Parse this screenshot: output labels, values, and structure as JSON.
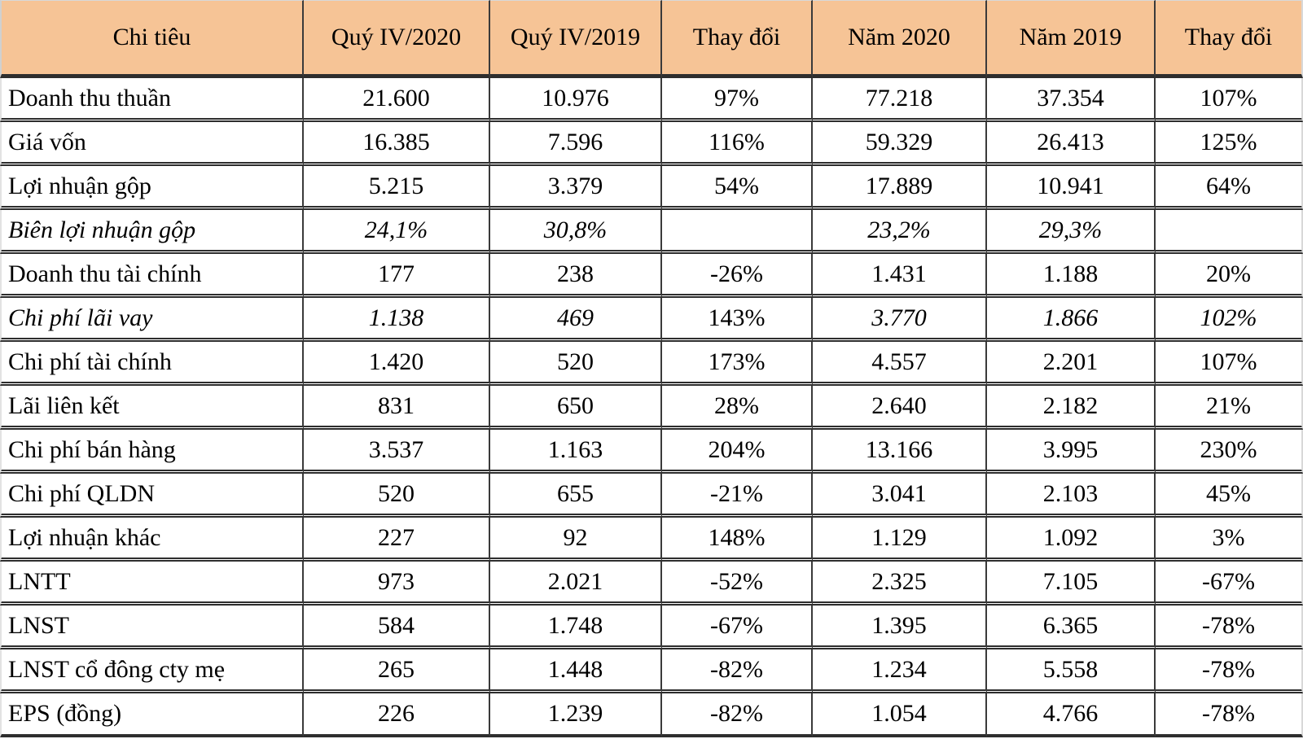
{
  "chart_data": {
    "type": "table",
    "columns": [
      "Chi tiêu",
      "Quý IV/2020",
      "Quý IV/2019",
      "Thay đổi",
      "Năm 2020",
      "Năm 2019",
      "Thay đổi"
    ],
    "rows": [
      {
        "label": "Doanh thu thuần",
        "italic": false,
        "values": [
          "21.600",
          "10.976",
          "97%",
          "77.218",
          "37.354",
          "107%"
        ]
      },
      {
        "label": "Giá vốn",
        "italic": false,
        "values": [
          "16.385",
          "7.596",
          "116%",
          "59.329",
          "26.413",
          "125%"
        ]
      },
      {
        "label": "Lợi nhuận gộp",
        "italic": false,
        "values": [
          "5.215",
          "3.379",
          "54%",
          "17.889",
          "10.941",
          "64%"
        ]
      },
      {
        "label": "Biên lợi nhuận gộp",
        "italic": true,
        "values": [
          "24,1%",
          "30,8%",
          "",
          "23,2%",
          "29,3%",
          ""
        ]
      },
      {
        "label": "Doanh thu tài chính",
        "italic": false,
        "values": [
          "177",
          "238",
          "-26%",
          "1.431",
          "1.188",
          "20%"
        ]
      },
      {
        "label": "Chi phí lãi vay",
        "italic": true,
        "upright_cells": [
          2
        ],
        "values": [
          "1.138",
          "469",
          "143%",
          "3.770",
          "1.866",
          "102%"
        ]
      },
      {
        "label": "Chi phí tài chính",
        "italic": false,
        "values": [
          "1.420",
          "520",
          "173%",
          "4.557",
          "2.201",
          "107%"
        ]
      },
      {
        "label": "Lãi liên kết",
        "italic": false,
        "values": [
          "831",
          "650",
          "28%",
          "2.640",
          "2.182",
          "21%"
        ]
      },
      {
        "label": "Chi phí bán hàng",
        "italic": false,
        "values": [
          "3.537",
          "1.163",
          "204%",
          "13.166",
          "3.995",
          "230%"
        ]
      },
      {
        "label": "Chi phí QLDN",
        "italic": false,
        "values": [
          "520",
          "655",
          "-21%",
          "3.041",
          "2.103",
          "45%"
        ]
      },
      {
        "label": "Lợi nhuận khác",
        "italic": false,
        "values": [
          "227",
          "92",
          "148%",
          "1.129",
          "1.092",
          "3%"
        ]
      },
      {
        "label": "LNTT",
        "italic": false,
        "values": [
          "973",
          "2.021",
          "-52%",
          "2.325",
          "7.105",
          "-67%"
        ]
      },
      {
        "label": "LNST",
        "italic": false,
        "values": [
          "584",
          "1.748",
          "-67%",
          "1.395",
          "6.365",
          "-78%"
        ]
      },
      {
        "label": "LNST cổ đông cty mẹ",
        "italic": false,
        "values": [
          "265",
          "1.448",
          "-82%",
          "1.234",
          "5.558",
          "-78%"
        ]
      },
      {
        "label": "EPS (đồng)",
        "italic": false,
        "values": [
          "226",
          "1.239",
          "-82%",
          "1.054",
          "4.766",
          "-78%"
        ]
      }
    ],
    "layout": {
      "header_row": true,
      "first_column_align": "left",
      "value_columns_align": "center"
    }
  },
  "colors": {
    "header_bg": "#F6C496",
    "grid_dark": "#3A3A3A",
    "row_separator": "#2D2D2D",
    "outer_light": "#D0D0D0",
    "text": "#000000",
    "cell_bg": "#FFFFFF"
  }
}
